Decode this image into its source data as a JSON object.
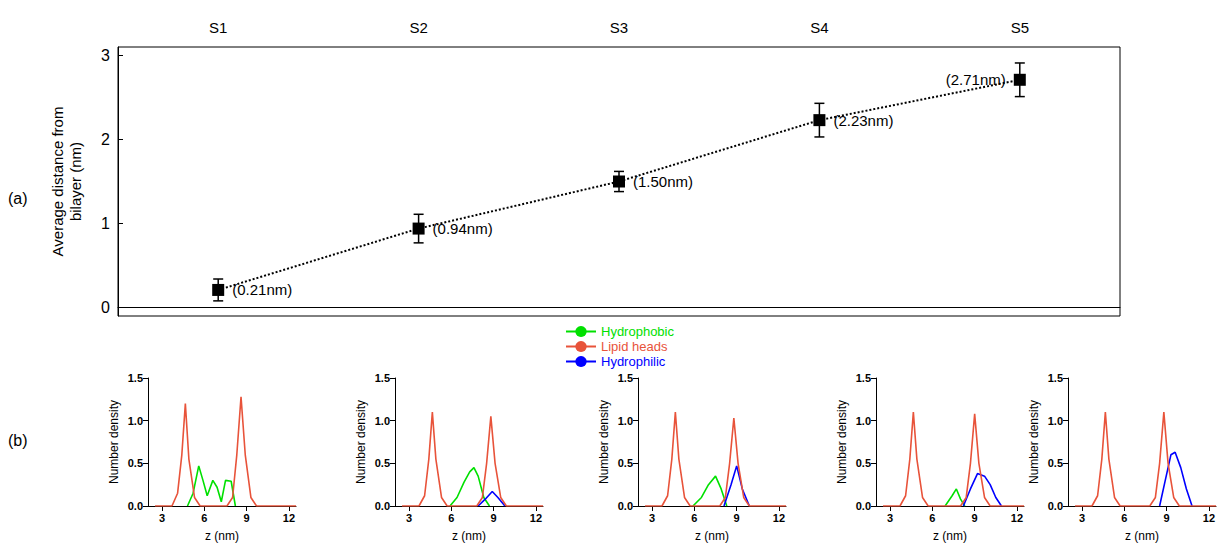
{
  "chart_data": [
    {
      "type": "line",
      "panel_label": "(a)",
      "y_label": "Average distance from bilayer (nm)",
      "categories": [
        "S1",
        "S2",
        "S3",
        "S4",
        "S5"
      ],
      "values": [
        0.21,
        0.94,
        1.5,
        2.23,
        2.71
      ],
      "value_labels": [
        "(0.21nm)",
        "(0.94nm)",
        "(1.50nm)",
        "(2.23nm)",
        "(2.71nm)"
      ],
      "errors": [
        0.13,
        0.17,
        0.12,
        0.2,
        0.2
      ],
      "ylim": [
        -0.1,
        3.1
      ],
      "yticks": [
        0,
        1,
        2,
        3
      ],
      "color": "#000000",
      "marker": "square",
      "line_style": "dotted",
      "data_labels": true
    },
    {
      "type": "line",
      "panel_label": "(b)",
      "x_label": "z (nm)",
      "y_label": "Number density",
      "xlim": [
        2,
        12.5
      ],
      "xticks": [
        3,
        6,
        9,
        12
      ],
      "ylim": [
        0,
        1.5
      ],
      "yticks": [
        {
          "value": 0,
          "label": "0.0"
        },
        {
          "value": 0.5,
          "label": "0.5"
        },
        {
          "value": 1,
          "label": "1.0"
        },
        {
          "value": 1.5,
          "label": "1.5"
        }
      ],
      "series": [
        {
          "name": "Hydrophobic",
          "color": "#00e000",
          "x": [
            4.8,
            5.2,
            5.6,
            5.9,
            6.2,
            6.6,
            6.9,
            7.2,
            7.5,
            7.9,
            8.2
          ],
          "values": [
            0,
            0.15,
            0.47,
            0.3,
            0.12,
            0.3,
            0.22,
            0.05,
            0.3,
            0.29,
            0
          ]
        },
        {
          "name": "Lipid heads",
          "color": "#e8533a",
          "x": [
            2.5,
            3.7,
            4.1,
            4.4,
            4.65,
            4.9,
            5.3,
            5.7,
            7.6,
            8.0,
            8.3,
            8.6,
            8.9,
            9.3,
            9.7,
            12.5
          ],
          "values": [
            0,
            0,
            0.15,
            0.6,
            1.2,
            0.55,
            0.1,
            0,
            0,
            0.1,
            0.6,
            1.28,
            0.6,
            0.1,
            0,
            0
          ]
        }
      ]
    },
    {
      "type": "line",
      "x_label": "z (nm)",
      "y_label": "Number density",
      "xlim": [
        2,
        12.5
      ],
      "xticks": [
        3,
        6,
        9,
        12
      ],
      "ylim": [
        0,
        1.5
      ],
      "yticks": [
        {
          "value": 0,
          "label": "0.0"
        },
        {
          "value": 0.5,
          "label": "0.5"
        },
        {
          "value": 1,
          "label": "1.0"
        },
        {
          "value": 1.5,
          "label": "1.5"
        }
      ],
      "series": [
        {
          "name": "Hydrophobic",
          "color": "#00e000",
          "x": [
            5.9,
            6.4,
            6.9,
            7.3,
            7.6,
            7.9,
            8.3,
            8.7
          ],
          "values": [
            0,
            0.1,
            0.28,
            0.4,
            0.45,
            0.35,
            0.1,
            0
          ]
        },
        {
          "name": "Hydrophilic",
          "color": "#0000ff",
          "x": [
            7.9,
            8.4,
            8.9,
            9.3,
            9.8
          ],
          "values": [
            0,
            0.08,
            0.17,
            0.1,
            0
          ]
        },
        {
          "name": "Lipid heads",
          "color": "#e8533a",
          "x": [
            2.5,
            3.7,
            4.1,
            4.4,
            4.65,
            4.9,
            5.3,
            5.7,
            7.8,
            8.2,
            8.5,
            8.8,
            9.1,
            9.5,
            9.9,
            12.5
          ],
          "values": [
            0,
            0,
            0.12,
            0.55,
            1.1,
            0.55,
            0.1,
            0,
            0,
            0.1,
            0.5,
            1.05,
            0.5,
            0.1,
            0,
            0
          ]
        }
      ]
    },
    {
      "type": "line",
      "x_label": "z (nm)",
      "y_label": "Number density",
      "legend": "top",
      "xlim": [
        2,
        12.5
      ],
      "xticks": [
        3,
        6,
        9,
        12
      ],
      "ylim": [
        0,
        1.5
      ],
      "yticks": [
        {
          "value": 0,
          "label": "0.0"
        },
        {
          "value": 0.5,
          "label": "0.5"
        },
        {
          "value": 1,
          "label": "1.0"
        },
        {
          "value": 1.5,
          "label": "1.5"
        }
      ],
      "series": [
        {
          "name": "Hydrophobic",
          "color": "#00e000",
          "x": [
            5.9,
            6.5,
            7.0,
            7.5,
            7.9,
            8.3
          ],
          "values": [
            0,
            0.1,
            0.25,
            0.35,
            0.2,
            0
          ]
        },
        {
          "name": "Hydrophilic",
          "color": "#0000ff",
          "x": [
            8.1,
            8.6,
            9.0,
            9.4,
            9.9
          ],
          "values": [
            0,
            0.25,
            0.47,
            0.2,
            0
          ]
        },
        {
          "name": "Lipid heads",
          "color": "#e8533a",
          "x": [
            2.5,
            3.7,
            4.1,
            4.4,
            4.65,
            4.9,
            5.3,
            5.7,
            7.8,
            8.2,
            8.5,
            8.8,
            9.1,
            9.5,
            9.9,
            12.5
          ],
          "values": [
            0,
            0,
            0.12,
            0.55,
            1.1,
            0.55,
            0.1,
            0,
            0,
            0.1,
            0.5,
            1.03,
            0.5,
            0.1,
            0,
            0
          ]
        }
      ]
    },
    {
      "type": "line",
      "x_label": "z (nm)",
      "y_label": "Number density",
      "xlim": [
        2,
        12.5
      ],
      "xticks": [
        3,
        6,
        9,
        12
      ],
      "ylim": [
        0,
        1.5
      ],
      "yticks": [
        {
          "value": 0,
          "label": "0.0"
        },
        {
          "value": 0.5,
          "label": "0.5"
        },
        {
          "value": 1,
          "label": "1.0"
        },
        {
          "value": 1.5,
          "label": "1.5"
        }
      ],
      "series": [
        {
          "name": "Hydrophobic",
          "color": "#00e000",
          "x": [
            6.9,
            7.4,
            7.7,
            8.0,
            8.3
          ],
          "values": [
            0,
            0.12,
            0.2,
            0.08,
            0
          ]
        },
        {
          "name": "Hydrophilic",
          "color": "#0000ff",
          "x": [
            8.2,
            8.7,
            9.2,
            9.7,
            10.1,
            10.5,
            10.9
          ],
          "values": [
            0,
            0.2,
            0.38,
            0.35,
            0.25,
            0.1,
            0
          ]
        },
        {
          "name": "Lipid heads",
          "color": "#e8533a",
          "x": [
            2.5,
            3.7,
            4.1,
            4.4,
            4.65,
            4.9,
            5.3,
            5.7,
            8.0,
            8.4,
            8.7,
            9.0,
            9.3,
            9.7,
            10.1,
            12.5
          ],
          "values": [
            0,
            0,
            0.12,
            0.55,
            1.1,
            0.55,
            0.1,
            0,
            0,
            0.1,
            0.5,
            1.08,
            0.5,
            0.1,
            0,
            0
          ]
        }
      ]
    },
    {
      "type": "line",
      "x_label": "z (nm)",
      "y_label": "Number density",
      "xlim": [
        2,
        12.5
      ],
      "xticks": [
        3,
        6,
        9,
        12
      ],
      "ylim": [
        0,
        1.5
      ],
      "yticks": [
        {
          "value": 0,
          "label": "0.0"
        },
        {
          "value": 0.5,
          "label": "0.5"
        },
        {
          "value": 1,
          "label": "1.0"
        },
        {
          "value": 1.5,
          "label": "1.5"
        }
      ],
      "series": [
        {
          "name": "Hydrophilic",
          "color": "#0000ff",
          "x": [
            8.5,
            8.9,
            9.3,
            9.6,
            10.0,
            10.4,
            10.8
          ],
          "values": [
            0,
            0.3,
            0.6,
            0.63,
            0.45,
            0.2,
            0
          ]
        },
        {
          "name": "Lipid heads",
          "color": "#e8533a",
          "x": [
            2.5,
            3.7,
            4.1,
            4.4,
            4.65,
            4.9,
            5.3,
            5.7,
            7.8,
            8.2,
            8.5,
            8.8,
            9.1,
            9.5,
            9.9,
            12.5
          ],
          "values": [
            0,
            0,
            0.12,
            0.55,
            1.1,
            0.55,
            0.1,
            0,
            0,
            0.1,
            0.5,
            1.1,
            0.5,
            0.1,
            0,
            0
          ]
        }
      ]
    }
  ]
}
